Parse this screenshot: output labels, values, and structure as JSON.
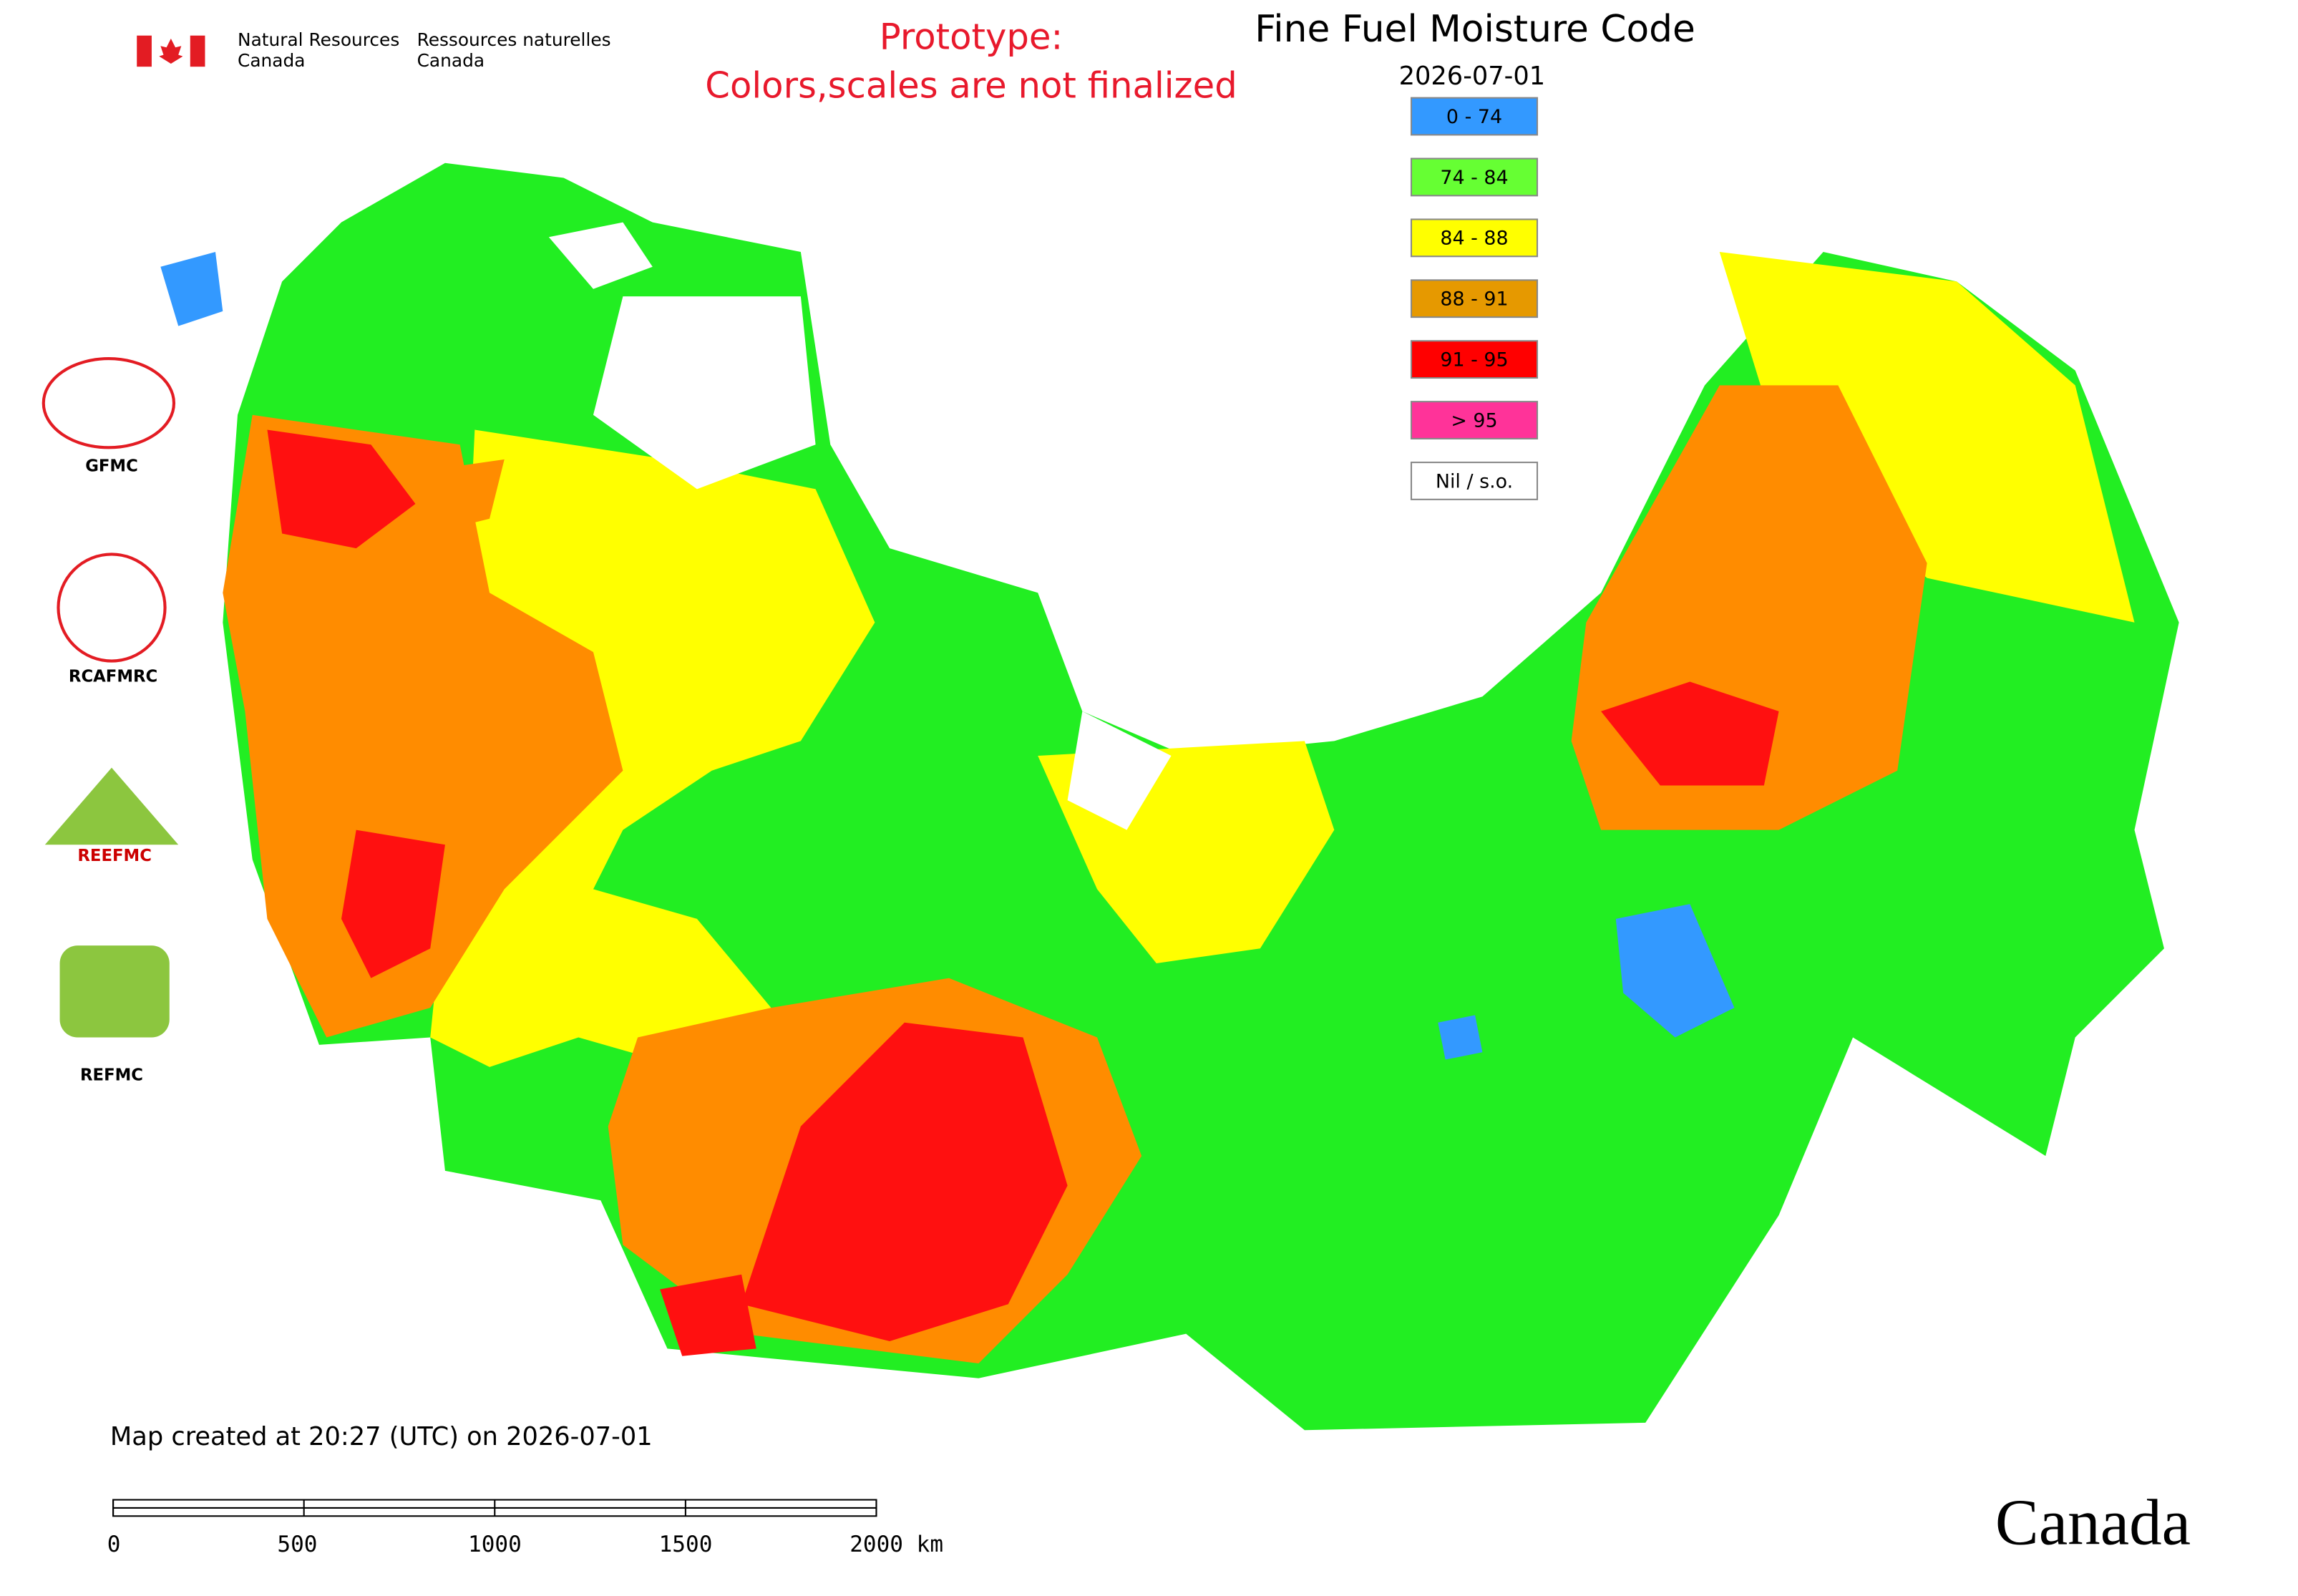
{
  "header": {
    "agency_en": [
      "Natural Resources",
      "Canada"
    ],
    "agency_fr": [
      "Ressources naturelles",
      "Canada"
    ],
    "notice": [
      "Prototype:",
      "Colors,scales are not finalized"
    ],
    "title": "Fine Fuel Moisture Code",
    "date": "2026-07-01"
  },
  "legend": {
    "items": [
      {
        "label": "0 - 74",
        "color": "#3399ff"
      },
      {
        "label": "74 - 84",
        "color": "#66ff33"
      },
      {
        "label": "84 - 88",
        "color": "#ffff00"
      },
      {
        "label": "88 - 91",
        "color": "#e69900"
      },
      {
        "label": "91 - 95",
        "color": "#ff0000"
      },
      {
        "label": "> 95",
        "color": "#ff3399"
      },
      {
        "label": "Nil / s.o.",
        "color": "#ffffff"
      }
    ]
  },
  "logos": [
    "GFMC",
    "RCAFMRC",
    "REEFMC",
    "REFMC"
  ],
  "footer": {
    "created": "Map created at 20:27 (UTC) on 2026-07-01",
    "scale_labels": [
      "0",
      "500",
      "1000",
      "1500",
      "2000 km"
    ],
    "wordmark": "Canada"
  }
}
